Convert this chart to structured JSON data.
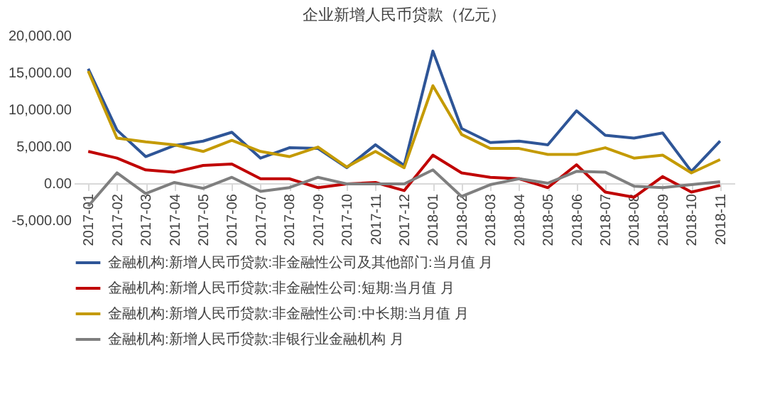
{
  "chart_data": {
    "type": "line",
    "title": "企业新增人民币贷款（亿元）",
    "categories": [
      "2017-01",
      "2017-02",
      "2017-03",
      "2017-04",
      "2017-05",
      "2017-06",
      "2017-07",
      "2017-08",
      "2017-09",
      "2017-10",
      "2017-11",
      "2017-12",
      "2018-01",
      "2018-02",
      "2018-03",
      "2018-04",
      "2018-05",
      "2018-06",
      "2018-07",
      "2018-08",
      "2018-09",
      "2018-10",
      "2018-11"
    ],
    "series": [
      {
        "name": "金融机构:新增人民币贷款:非金融性公司及其他部门:当月值 月",
        "color": "#2e5597",
        "values": [
          15500,
          7200,
          3600,
          5100,
          5700,
          6900,
          3400,
          4800,
          4700,
          2100,
          5200,
          2400,
          17900,
          7400,
          5500,
          5700,
          5200,
          9800,
          6500,
          6100,
          6800,
          1600,
          5700
        ]
      },
      {
        "name": "金融机构:新增人民币贷款:非金融性公司:短期:当月值 月",
        "color": "#c00000",
        "values": [
          4300,
          3400,
          1800,
          1500,
          2400,
          2600,
          600,
          600,
          -600,
          -100,
          100,
          -1000,
          3800,
          1400,
          800,
          600,
          -600,
          2500,
          -1200,
          -1900,
          900,
          -1200,
          -300
        ]
      },
      {
        "name": "金融机构:新增人民币贷款:非金融性公司:中长期:当月值 月",
        "color": "#c49a00",
        "values": [
          15200,
          6100,
          5600,
          5200,
          4300,
          5800,
          4300,
          3600,
          4900,
          2200,
          4300,
          2100,
          13200,
          6600,
          4700,
          4700,
          3900,
          3900,
          4800,
          3400,
          3800,
          1400,
          3200
        ]
      },
      {
        "name": "金融机构:新增人民币贷款:非银行业金融机构 月",
        "color": "#7f7f7f",
        "values": [
          -3100,
          1400,
          -1400,
          100,
          -700,
          800,
          -1100,
          -600,
          800,
          -100,
          -100,
          -100,
          1800,
          -1800,
          -200,
          600,
          0,
          1600,
          1500,
          -400,
          -600,
          -200,
          200
        ]
      }
    ],
    "ylim": [
      -5000,
      20000
    ],
    "yticks": [
      {
        "value": -5000,
        "label": "-5,000.00"
      },
      {
        "value": 0,
        "label": "0.00"
      },
      {
        "value": 5000,
        "label": "5,000.00"
      },
      {
        "value": 10000,
        "label": "10,000.00"
      },
      {
        "value": 15000,
        "label": "15,000.00"
      },
      {
        "value": 20000,
        "label": "20,000.00"
      }
    ],
    "grid": false,
    "legend": "bottom",
    "marker": "none",
    "line_style": "solid"
  }
}
